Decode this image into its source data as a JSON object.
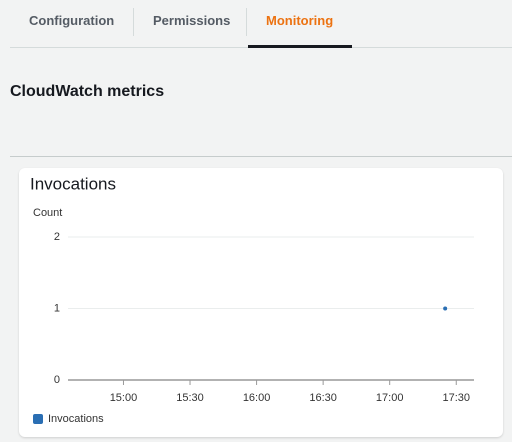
{
  "tabs": [
    "Configuration",
    "Permissions",
    "Monitoring"
  ],
  "section_title": "CloudWatch metrics",
  "chart_data": {
    "type": "scatter",
    "title": "Invocations",
    "ylabel": "Count",
    "x": [
      1045
    ],
    "series": [
      {
        "name": "Invocations",
        "color": "#2a6eb3",
        "values": [
          1
        ]
      }
    ],
    "xlim": [
      875,
      1058
    ],
    "xticks": [
      {
        "value": 900,
        "label": "15:00"
      },
      {
        "value": 930,
        "label": "15:30"
      },
      {
        "value": 960,
        "label": "16:00"
      },
      {
        "value": 990,
        "label": "16:30"
      },
      {
        "value": 1020,
        "label": "17:00"
      },
      {
        "value": 1050,
        "label": "17:30"
      }
    ],
    "ylim": [
      0,
      2
    ],
    "yticks": [
      0,
      1,
      2
    ],
    "grid": true
  }
}
